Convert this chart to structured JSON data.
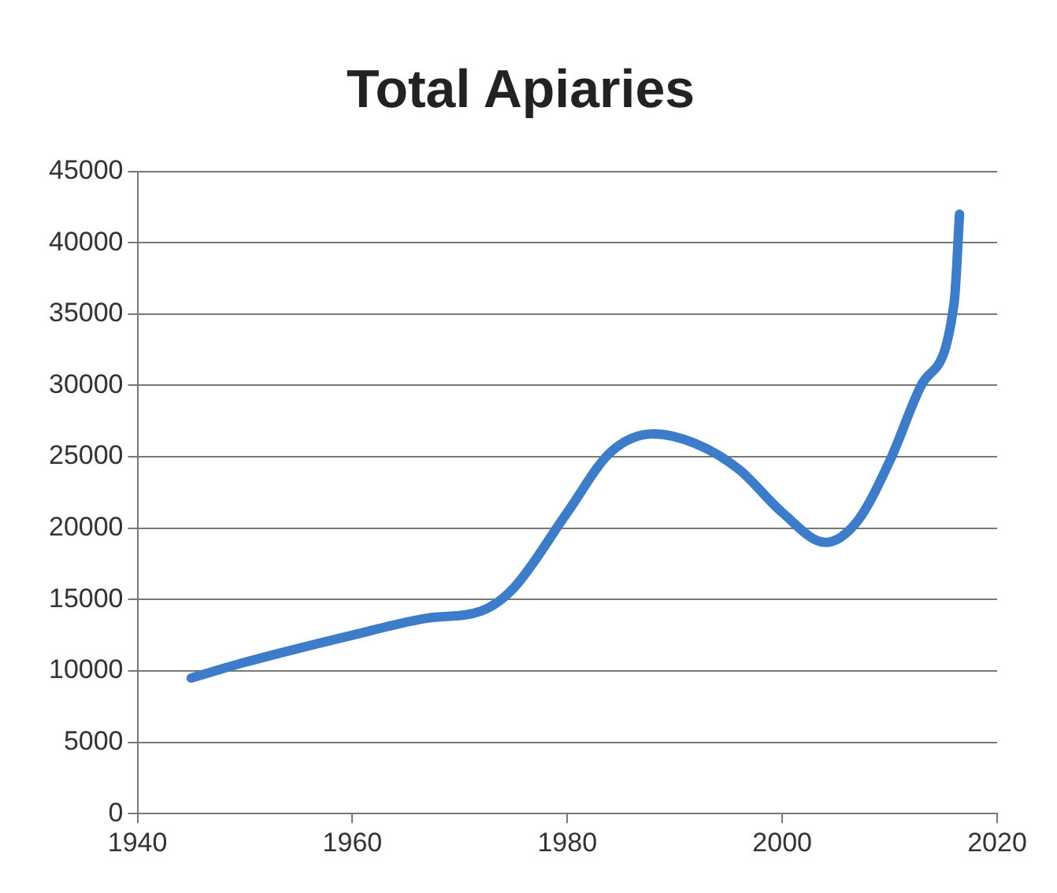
{
  "chart_data": {
    "type": "line",
    "title": "Total Apiaries",
    "x": [
      1945,
      1950,
      1960,
      1967,
      1972,
      1975,
      1980,
      1984,
      1988,
      1992,
      1996,
      2000,
      2004,
      2007,
      2010,
      2013,
      2016,
      2016.5
    ],
    "series": [
      {
        "color": "#3d7cc9",
        "values": [
          9500,
          10600,
          12500,
          13700,
          14200,
          15800,
          21100,
          25300,
          26600,
          25900,
          24100,
          21100,
          19000,
          20500,
          24700,
          30100,
          35800,
          42000
        ]
      }
    ],
    "xlim": [
      1940,
      2020
    ],
    "xticks": [
      1940,
      1960,
      1980,
      2000,
      2020
    ],
    "ylim": [
      0,
      45000
    ],
    "yticks": [
      0,
      5000,
      10000,
      15000,
      20000,
      25000,
      30000,
      35000,
      40000,
      45000
    ],
    "grid": "y",
    "legend": false,
    "marker": "none",
    "line_style": "solid"
  }
}
